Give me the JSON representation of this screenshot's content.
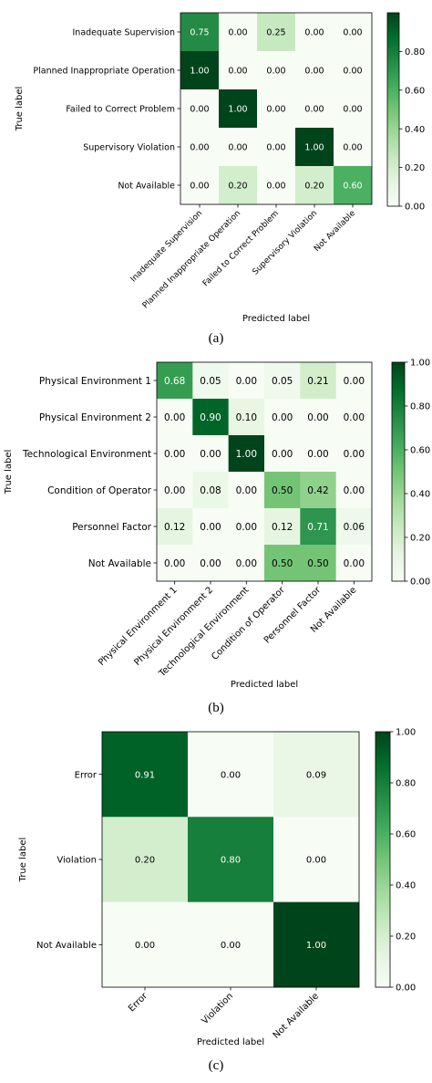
{
  "chart_data": [
    {
      "type": "heatmap",
      "caption": "(a)",
      "xlabel": "Predicted label",
      "ylabel": "True label",
      "row_labels": [
        "Inadequate Supervision",
        "Planned Inappropriate Operation",
        "Failed to Correct Problem",
        "Supervisory Violation",
        "Not Available"
      ],
      "col_labels": [
        "Inadequate Supervision",
        "Planned Inappropriate Operation",
        "Failed to Correct Problem",
        "Supervisory Violation",
        "Not Available"
      ],
      "values": [
        [
          0.75,
          0.0,
          0.25,
          0.0,
          0.0
        ],
        [
          1.0,
          0.0,
          0.0,
          0.0,
          0.0
        ],
        [
          0.0,
          1.0,
          0.0,
          0.0,
          0.0
        ],
        [
          0.0,
          0.0,
          0.0,
          1.0,
          0.0
        ],
        [
          0.0,
          0.2,
          0.0,
          0.2,
          0.6
        ]
      ],
      "colorbar_ticks": [
        "0.00",
        "0.20",
        "0.40",
        "0.60",
        "0.80"
      ],
      "colorbar_range": [
        0,
        1
      ],
      "colormap": "Greens"
    },
    {
      "type": "heatmap",
      "caption": "(b)",
      "xlabel": "Predicted label",
      "ylabel": "True label",
      "row_labels": [
        "Physical Environment 1",
        "Physical Environment 2",
        "Technological Environment",
        "Condition of Operator",
        "Personnel Factor",
        "Not Available"
      ],
      "col_labels": [
        "Physical Environment 1",
        "Physical Environment 2",
        "Technological Environment",
        "Condition of Operator",
        "Personnel Factor",
        "Not Available"
      ],
      "values": [
        [
          0.68,
          0.05,
          0.0,
          0.05,
          0.21,
          0.0
        ],
        [
          0.0,
          0.9,
          0.1,
          0.0,
          0.0,
          0.0
        ],
        [
          0.0,
          0.0,
          1.0,
          0.0,
          0.0,
          0.0
        ],
        [
          0.0,
          0.08,
          0.0,
          0.5,
          0.42,
          0.0
        ],
        [
          0.12,
          0.0,
          0.0,
          0.12,
          0.71,
          0.06
        ],
        [
          0.0,
          0.0,
          0.0,
          0.5,
          0.5,
          0.0
        ]
      ],
      "colorbar_ticks": [
        "0.00",
        "0.20",
        "0.40",
        "0.60",
        "0.80",
        "1.00"
      ],
      "colorbar_range": [
        0,
        1
      ],
      "colormap": "Greens"
    },
    {
      "type": "heatmap",
      "caption": "(c)",
      "xlabel": "Predicted label",
      "ylabel": "True label",
      "row_labels": [
        "Error",
        "Violation",
        "Not Available"
      ],
      "col_labels": [
        "Error",
        "Violation",
        "Not Available"
      ],
      "values": [
        [
          0.91,
          0.0,
          0.09
        ],
        [
          0.2,
          0.8,
          0.0
        ],
        [
          0.0,
          0.0,
          1.0
        ]
      ],
      "colorbar_ticks": [
        "0.00",
        "0.20",
        "0.40",
        "0.60",
        "0.80",
        "1.00"
      ],
      "colorbar_range": [
        0,
        1
      ],
      "colormap": "Greens"
    }
  ]
}
